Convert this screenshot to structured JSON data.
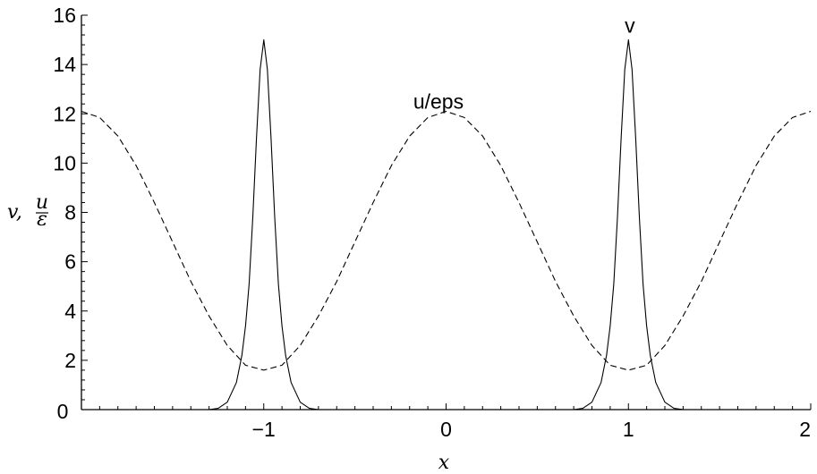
{
  "chart_data": {
    "type": "line",
    "xlabel": "x",
    "ylabel": "v, u/ε",
    "ylabel_parts": {
      "a": "v,",
      "num": "u",
      "den": "ε"
    },
    "xlim": [
      -2,
      2
    ],
    "ylim": [
      0,
      16
    ],
    "x_ticks": [
      -1,
      0,
      1,
      2
    ],
    "x_tick_labels": [
      "−1",
      "0",
      "1",
      "2"
    ],
    "x_origin_label": "0",
    "y_ticks": [
      2,
      4,
      6,
      8,
      10,
      12,
      14,
      16
    ],
    "y_tick_labels": [
      "2",
      "4",
      "6",
      "8",
      "10",
      "12",
      "14",
      "16"
    ],
    "grid": false,
    "annotations": [
      {
        "text": "v",
        "x": 0.98,
        "y": 15.3
      },
      {
        "text": "u/eps",
        "x": -0.18,
        "y": 12.2
      }
    ],
    "series": [
      {
        "name": "v",
        "style": "solid",
        "color": "#000000",
        "x": [
          -2.0,
          -1.6,
          -1.3,
          -1.25,
          -1.2,
          -1.15,
          -1.12,
          -1.1,
          -1.08,
          -1.06,
          -1.04,
          -1.02,
          -1.0,
          -0.98,
          -0.96,
          -0.94,
          -0.92,
          -0.9,
          -0.88,
          -0.85,
          -0.8,
          -0.75,
          -0.7,
          0.0,
          0.7,
          0.75,
          0.8,
          0.85,
          0.88,
          0.9,
          0.92,
          0.94,
          0.96,
          0.98,
          1.0,
          1.02,
          1.04,
          1.06,
          1.08,
          1.1,
          1.12,
          1.15,
          1.2,
          1.25,
          1.3,
          1.6,
          2.0
        ],
        "y": [
          0.0,
          0.0,
          0.0,
          0.05,
          0.3,
          1.1,
          2.2,
          3.4,
          5.1,
          7.8,
          11.0,
          13.8,
          15.0,
          13.8,
          11.0,
          7.8,
          5.1,
          3.4,
          2.2,
          1.1,
          0.3,
          0.05,
          0.0,
          0.0,
          0.0,
          0.05,
          0.3,
          1.1,
          2.2,
          3.4,
          5.1,
          7.8,
          11.0,
          13.8,
          15.0,
          13.8,
          11.0,
          7.8,
          5.1,
          3.4,
          2.2,
          1.1,
          0.3,
          0.05,
          0.0,
          0.0,
          0.0
        ]
      },
      {
        "name": "u/eps",
        "style": "dashed",
        "color": "#000000",
        "x": [
          -2.0,
          -1.9,
          -1.8,
          -1.7,
          -1.6,
          -1.5,
          -1.4,
          -1.3,
          -1.2,
          -1.1,
          -1.0,
          -0.9,
          -0.8,
          -0.7,
          -0.6,
          -0.5,
          -0.4,
          -0.3,
          -0.2,
          -0.1,
          0.0,
          0.1,
          0.2,
          0.3,
          0.4,
          0.5,
          0.6,
          0.7,
          0.8,
          0.9,
          1.0,
          1.1,
          1.2,
          1.3,
          1.4,
          1.5,
          1.6,
          1.7,
          1.8,
          1.9,
          2.0
        ],
        "y": [
          12.1,
          11.85,
          11.1,
          9.9,
          8.4,
          6.8,
          5.2,
          3.8,
          2.6,
          1.8,
          1.6,
          1.8,
          2.6,
          3.8,
          5.2,
          6.8,
          8.4,
          9.9,
          11.1,
          11.85,
          12.1,
          11.85,
          11.1,
          9.9,
          8.4,
          6.8,
          5.2,
          3.8,
          2.6,
          1.8,
          1.6,
          1.8,
          2.6,
          3.8,
          5.2,
          6.8,
          8.4,
          9.9,
          11.1,
          11.85,
          12.1
        ]
      }
    ]
  }
}
